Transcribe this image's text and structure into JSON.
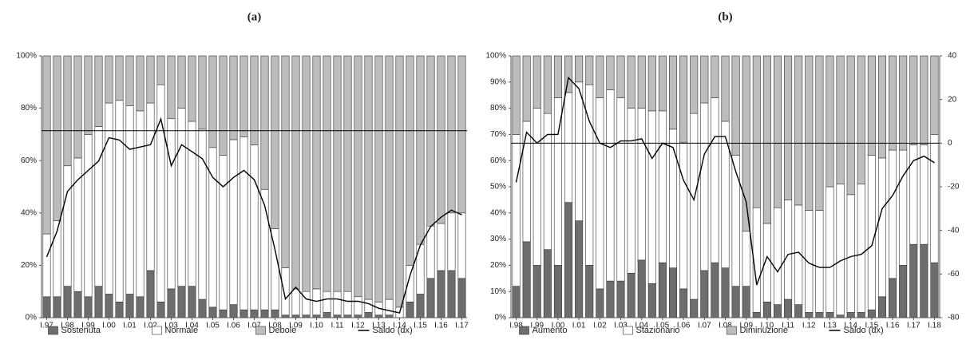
{
  "chart_data": [
    {
      "type": "bar",
      "stacked": true,
      "title": "(a)",
      "categories": [
        "I.97",
        null,
        "I.98",
        null,
        "I.99",
        null,
        "I.00",
        null,
        "I.01",
        null,
        "I.02",
        null,
        "I.03",
        null,
        "I.04",
        null,
        "I.05",
        null,
        "I.06",
        null,
        "I.07",
        null,
        "I.08",
        null,
        "I.09",
        null,
        "I.10",
        null,
        "I.11",
        null,
        "I.12",
        null,
        "I.13",
        null,
        "I.14",
        null,
        "I.15",
        null,
        "I.16",
        null,
        "I.17"
      ],
      "series": [
        {
          "name": "Sostenuta",
          "color": "#6d6d6d",
          "values": [
            8,
            8,
            12,
            10,
            8,
            12,
            9,
            6,
            9,
            8,
            18,
            6,
            11,
            12,
            12,
            7,
            4,
            3,
            5,
            3,
            3,
            3,
            3,
            1,
            1,
            1,
            1,
            2,
            1,
            1,
            1,
            2,
            1,
            1,
            0,
            6,
            9,
            15,
            18,
            18,
            15
          ]
        },
        {
          "name": "Normale",
          "color": "#ffffff",
          "values": [
            24,
            29,
            46,
            51,
            62,
            61,
            73,
            77,
            72,
            71,
            64,
            83,
            65,
            68,
            63,
            65,
            61,
            59,
            63,
            66,
            63,
            46,
            31,
            18,
            10,
            9,
            10,
            8,
            9,
            9,
            7,
            5,
            5,
            6,
            4,
            14,
            19,
            20,
            18,
            22,
            25
          ]
        },
        {
          "name": "Debole",
          "color": "#bdbdbd",
          "values": [
            68,
            63,
            42,
            39,
            30,
            27,
            18,
            17,
            19,
            21,
            18,
            11,
            24,
            20,
            25,
            28,
            35,
            38,
            32,
            31,
            34,
            51,
            66,
            81,
            89,
            90,
            89,
            90,
            90,
            90,
            92,
            93,
            94,
            93,
            96,
            80,
            72,
            65,
            64,
            60,
            60
          ]
        },
        {
          "name": "Saldo (dx)",
          "type": "line",
          "axis": "y2",
          "color": "#000000",
          "values": [
            -54,
            -43,
            -26,
            -21,
            -17,
            -13,
            -3,
            -4,
            -8,
            -7,
            -6,
            5,
            -15,
            -6,
            -9,
            -12,
            -20,
            -24,
            -20,
            -17,
            -21,
            -32,
            -51,
            -72,
            -67,
            -72,
            -73,
            -72,
            -72,
            -73,
            -73,
            -74,
            -76,
            -77,
            -78,
            -62,
            -49,
            -41,
            -37,
            -34,
            -36
          ]
        }
      ],
      "ylim": [
        0,
        100
      ],
      "yticks": [
        {
          "value": 0,
          "label": "0%"
        },
        {
          "value": 20,
          "label": "20%"
        },
        {
          "value": 40,
          "label": "40%"
        },
        {
          "value": 60,
          "label": "60%"
        },
        {
          "value": 80,
          "label": "80%"
        },
        {
          "value": 100,
          "label": "100%"
        }
      ],
      "y2lim": [
        -80,
        32
      ]
    },
    {
      "type": "bar",
      "stacked": true,
      "title": "(b)",
      "categories": [
        "I.98",
        null,
        "I.99",
        null,
        "I.00",
        null,
        "I.01",
        null,
        "I.02",
        null,
        "I.03",
        null,
        "I.04",
        null,
        "I.05",
        null,
        "I.06",
        null,
        "I.07",
        null,
        "I.08",
        null,
        "I.09",
        null,
        "I.10",
        null,
        "I.11",
        null,
        "I.12",
        null,
        "I.13",
        null,
        "I.14",
        null,
        "I.15",
        null,
        "I.16",
        null,
        "I.17",
        null,
        "I.18"
      ],
      "series": [
        {
          "name": "Aumento",
          "color": "#6d6d6d",
          "values": [
            12,
            29,
            20,
            26,
            20,
            44,
            37,
            20,
            11,
            14,
            14,
            17,
            22,
            13,
            21,
            19,
            11,
            7,
            18,
            21,
            19,
            12,
            12,
            2,
            6,
            5,
            7,
            5,
            2,
            2,
            2,
            1,
            2,
            2,
            3,
            8,
            15,
            20,
            28,
            28,
            21
          ]
        },
        {
          "name": "Stazionario",
          "color": "#ffffff",
          "values": [
            58,
            46,
            60,
            52,
            64,
            42,
            53,
            69,
            73,
            73,
            70,
            63,
            58,
            66,
            58,
            53,
            56,
            71,
            64,
            63,
            56,
            50,
            21,
            40,
            30,
            37,
            38,
            38,
            39,
            39,
            48,
            50,
            45,
            49,
            59,
            53,
            49,
            44,
            38,
            38,
            49
          ]
        },
        {
          "name": "Diminuzione",
          "color": "#bdbdbd",
          "values": [
            30,
            25,
            20,
            22,
            16,
            14,
            10,
            11,
            16,
            13,
            16,
            20,
            20,
            21,
            21,
            28,
            33,
            22,
            18,
            16,
            25,
            38,
            67,
            58,
            64,
            58,
            55,
            57,
            59,
            59,
            50,
            49,
            53,
            49,
            38,
            39,
            36,
            36,
            34,
            34,
            30
          ]
        },
        {
          "name": "Saldo (dx)",
          "type": "line",
          "axis": "y2",
          "color": "#000000",
          "values": [
            -18,
            5,
            0,
            4,
            4,
            30,
            25,
            10,
            0,
            -2,
            1,
            1,
            2,
            -7,
            0,
            -2,
            -17,
            -26,
            -5,
            3,
            3,
            -13,
            -27,
            -65,
            -52,
            -59,
            -51,
            -50,
            -55,
            -57,
            -57,
            -54,
            -52,
            -51,
            -47,
            -30,
            -24,
            -15,
            -8,
            -6,
            -9
          ]
        }
      ],
      "ylim": [
        0,
        100
      ],
      "yticks": [
        {
          "value": 0,
          "label": "0%"
        },
        {
          "value": 10,
          "label": "10%"
        },
        {
          "value": 20,
          "label": "20%"
        },
        {
          "value": 30,
          "label": "30%"
        },
        {
          "value": 40,
          "label": "40%"
        },
        {
          "value": 50,
          "label": "50%"
        },
        {
          "value": 60,
          "label": "60%"
        },
        {
          "value": 70,
          "label": "70%"
        },
        {
          "value": 80,
          "label": "80%"
        },
        {
          "value": 90,
          "label": "90%"
        },
        {
          "value": 100,
          "label": "100%"
        }
      ],
      "y2lim": [
        -80,
        40
      ],
      "y2ticks": [
        -80,
        -60,
        -40,
        -20,
        0,
        20,
        40
      ]
    }
  ]
}
